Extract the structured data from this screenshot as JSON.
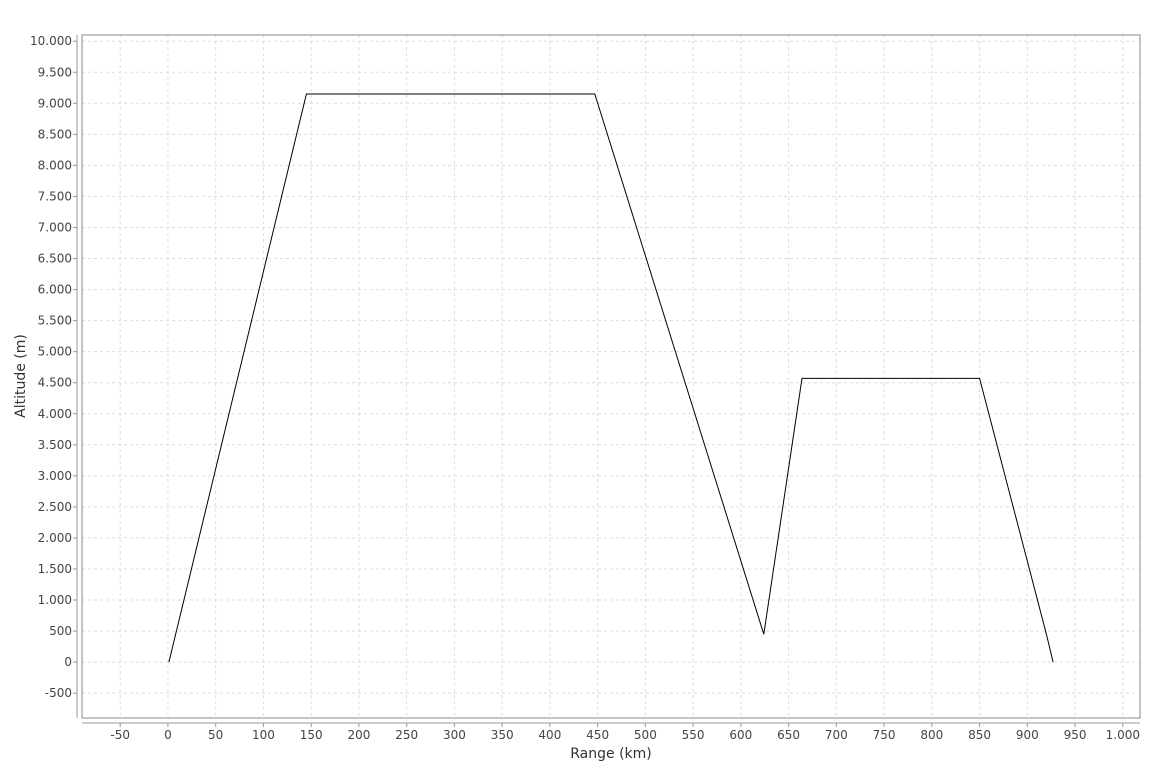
{
  "chart_data": {
    "type": "line",
    "title": "",
    "xlabel": "Range (km)",
    "ylabel": "Altitude (m)",
    "xlim": [
      -90,
      1018
    ],
    "ylim": [
      -900,
      10100
    ],
    "x_ticks": [
      -50,
      0,
      50,
      100,
      150,
      200,
      250,
      300,
      350,
      400,
      450,
      500,
      550,
      600,
      650,
      700,
      750,
      800,
      850,
      900,
      950,
      1000
    ],
    "x_tick_labels": [
      "-50",
      "0",
      "50",
      "100",
      "150",
      "200",
      "250",
      "300",
      "350",
      "400",
      "450",
      "500",
      "550",
      "600",
      "650",
      "700",
      "750",
      "800",
      "850",
      "900",
      "950",
      "1.000"
    ],
    "y_ticks": [
      -500,
      0,
      500,
      1000,
      1500,
      2000,
      2500,
      3000,
      3500,
      4000,
      4500,
      5000,
      5500,
      6000,
      6500,
      7000,
      7500,
      8000,
      8500,
      9000,
      9500,
      10000
    ],
    "y_tick_labels": [
      "-500",
      "0",
      "500",
      "1.000",
      "1.500",
      "2.000",
      "2.500",
      "3.000",
      "3.500",
      "4.000",
      "4.500",
      "5.000",
      "5.500",
      "6.000",
      "6.500",
      "7.000",
      "7.500",
      "8.000",
      "8.500",
      "9.000",
      "9.500",
      "10.000"
    ],
    "grid": true,
    "legend": "none",
    "line_color": "#000000",
    "series": [
      {
        "x": [
          1,
          145,
          447,
          624,
          664,
          850,
          920,
          927
        ],
        "y": [
          0,
          9150,
          9150,
          450,
          4570,
          4570,
          450,
          0
        ]
      }
    ]
  }
}
